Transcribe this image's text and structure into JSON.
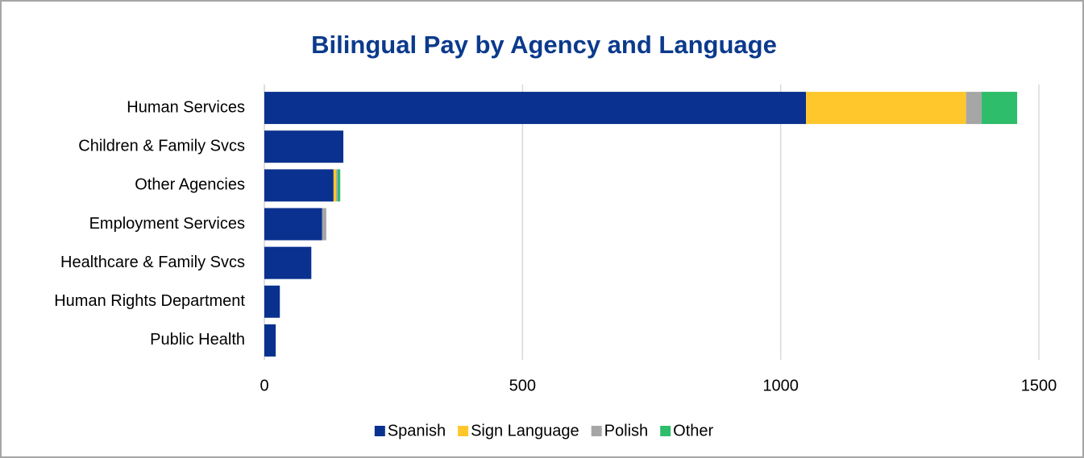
{
  "chart_data": {
    "type": "bar",
    "orientation": "horizontal",
    "stacked": true,
    "title": "Bilingual Pay by Agency and Language",
    "categories": [
      "Human Services",
      "Children & Family Svcs",
      "Other Agencies",
      "Employment Services",
      "Healthcare & Family Svcs",
      "Human Rights Department",
      "Public Health"
    ],
    "series": [
      {
        "name": "Spanish",
        "color": "#0a318f",
        "values": [
          1049,
          153,
          134,
          112,
          91,
          30,
          22
        ]
      },
      {
        "name": "Sign Language",
        "color": "#ffc72c",
        "values": [
          310,
          0,
          5,
          0,
          0,
          0,
          0
        ]
      },
      {
        "name": "Polish",
        "color": "#a6a6a6",
        "values": [
          30,
          0,
          3,
          8,
          0,
          0,
          0
        ]
      },
      {
        "name": "Other",
        "color": "#2ebd6b",
        "values": [
          69,
          0,
          5,
          0,
          0,
          0,
          0
        ]
      }
    ],
    "xlim": [
      0,
      1500
    ],
    "xticks": [
      0,
      500,
      1000,
      1500
    ],
    "grid": true,
    "legend": "bottom"
  }
}
